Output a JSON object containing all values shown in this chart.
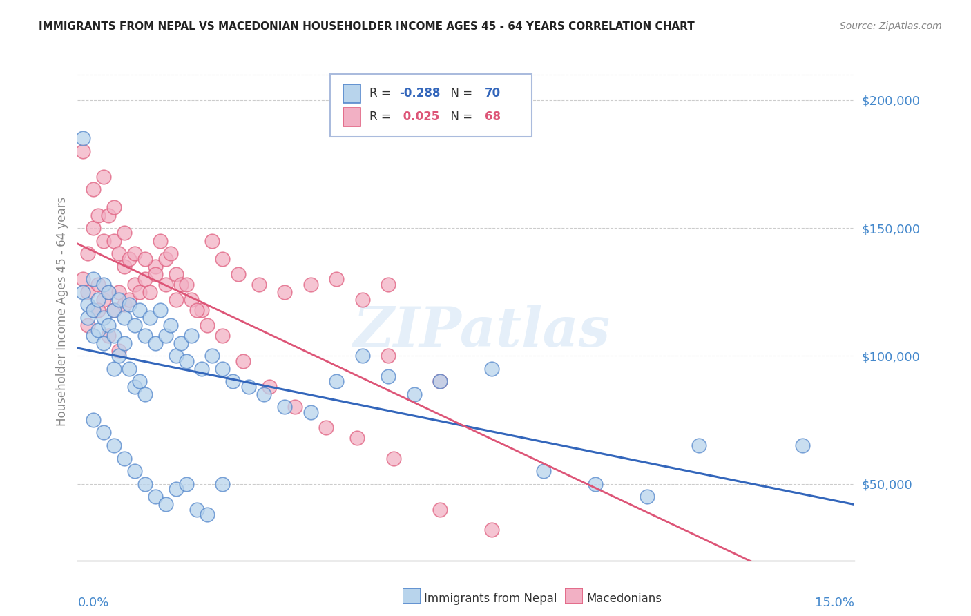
{
  "title": "IMMIGRANTS FROM NEPAL VS MACEDONIAN HOUSEHOLDER INCOME AGES 45 - 64 YEARS CORRELATION CHART",
  "source": "Source: ZipAtlas.com",
  "ylabel": "Householder Income Ages 45 - 64 years",
  "xmin": 0.0,
  "xmax": 0.15,
  "ymin": 20000,
  "ymax": 215000,
  "yticks": [
    50000,
    100000,
    150000,
    200000
  ],
  "ytick_labels": [
    "$50,000",
    "$100,000",
    "$150,000",
    "$200,000"
  ],
  "legend_r_nepal": "-0.288",
  "legend_n_nepal": "70",
  "legend_r_macedonian": "0.025",
  "legend_n_macedonian": "68",
  "color_nepal_fill": "#b8d4ec",
  "color_macedonian_fill": "#f2b0c4",
  "color_nepal_edge": "#5588cc",
  "color_macedonian_edge": "#e06080",
  "color_nepal_line": "#3366bb",
  "color_macedonian_line": "#dd5577",
  "watermark": "ZIPatlas",
  "nepal_x": [
    0.001,
    0.002,
    0.002,
    0.003,
    0.003,
    0.003,
    0.004,
    0.004,
    0.005,
    0.005,
    0.005,
    0.006,
    0.006,
    0.007,
    0.007,
    0.007,
    0.008,
    0.008,
    0.009,
    0.009,
    0.01,
    0.01,
    0.011,
    0.011,
    0.012,
    0.012,
    0.013,
    0.013,
    0.014,
    0.015,
    0.016,
    0.017,
    0.018,
    0.019,
    0.02,
    0.021,
    0.022,
    0.024,
    0.026,
    0.028,
    0.03,
    0.033,
    0.036,
    0.04,
    0.045,
    0.05,
    0.055,
    0.06,
    0.065,
    0.07,
    0.08,
    0.09,
    0.1,
    0.11,
    0.12,
    0.003,
    0.005,
    0.007,
    0.009,
    0.011,
    0.013,
    0.015,
    0.017,
    0.019,
    0.021,
    0.023,
    0.025,
    0.028,
    0.14,
    0.001
  ],
  "nepal_y": [
    125000,
    120000,
    115000,
    130000,
    118000,
    108000,
    122000,
    110000,
    128000,
    115000,
    105000,
    125000,
    112000,
    118000,
    108000,
    95000,
    122000,
    100000,
    115000,
    105000,
    120000,
    95000,
    112000,
    88000,
    118000,
    90000,
    108000,
    85000,
    115000,
    105000,
    118000,
    108000,
    112000,
    100000,
    105000,
    98000,
    108000,
    95000,
    100000,
    95000,
    90000,
    88000,
    85000,
    80000,
    78000,
    90000,
    100000,
    92000,
    85000,
    90000,
    95000,
    55000,
    50000,
    45000,
    65000,
    75000,
    70000,
    65000,
    60000,
    55000,
    50000,
    45000,
    42000,
    48000,
    50000,
    40000,
    38000,
    50000,
    65000,
    185000
  ],
  "macedonian_x": [
    0.001,
    0.002,
    0.002,
    0.003,
    0.003,
    0.004,
    0.004,
    0.005,
    0.005,
    0.006,
    0.006,
    0.007,
    0.007,
    0.008,
    0.008,
    0.009,
    0.009,
    0.01,
    0.01,
    0.011,
    0.012,
    0.013,
    0.014,
    0.015,
    0.016,
    0.017,
    0.018,
    0.019,
    0.02,
    0.022,
    0.024,
    0.026,
    0.028,
    0.031,
    0.035,
    0.04,
    0.045,
    0.05,
    0.055,
    0.06,
    0.07,
    0.08,
    0.003,
    0.005,
    0.007,
    0.009,
    0.011,
    0.013,
    0.015,
    0.017,
    0.019,
    0.021,
    0.023,
    0.025,
    0.028,
    0.032,
    0.037,
    0.042,
    0.048,
    0.054,
    0.061,
    0.07,
    0.002,
    0.004,
    0.006,
    0.008,
    0.06,
    0.001
  ],
  "macedonian_y": [
    130000,
    140000,
    125000,
    150000,
    118000,
    155000,
    128000,
    145000,
    122000,
    155000,
    125000,
    145000,
    118000,
    140000,
    125000,
    135000,
    120000,
    138000,
    122000,
    128000,
    125000,
    130000,
    125000,
    135000,
    145000,
    138000,
    140000,
    132000,
    128000,
    122000,
    118000,
    145000,
    138000,
    132000,
    128000,
    125000,
    128000,
    130000,
    122000,
    128000,
    90000,
    32000,
    165000,
    170000,
    158000,
    148000,
    140000,
    138000,
    132000,
    128000,
    122000,
    128000,
    118000,
    112000,
    108000,
    98000,
    88000,
    80000,
    72000,
    68000,
    60000,
    40000,
    112000,
    118000,
    108000,
    102000,
    100000,
    180000
  ]
}
